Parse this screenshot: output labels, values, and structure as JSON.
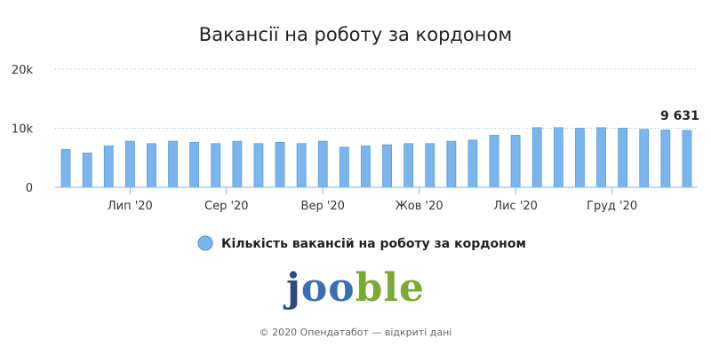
{
  "chart_data": {
    "type": "bar",
    "title": "Вакансії на роботу за кордоном",
    "ylim": [
      0,
      20000
    ],
    "yticks": [
      {
        "value": 0,
        "label": "0"
      },
      {
        "value": 10000,
        "label": "10k"
      },
      {
        "value": 20000,
        "label": "20k"
      }
    ],
    "grid": true,
    "xticks": [
      {
        "index": 3,
        "label": "Лип '20"
      },
      {
        "index": 7.5,
        "label": "Сер '20"
      },
      {
        "index": 12,
        "label": "Вер '20"
      },
      {
        "index": 16.5,
        "label": "Жов '20"
      },
      {
        "index": 21,
        "label": "Лис '20"
      },
      {
        "index": 25.5,
        "label": "Груд '20"
      }
    ],
    "series": [
      {
        "name": "Кількість вакансій на роботу за кордоном",
        "color": "#7cb5ec",
        "values": [
          6400,
          5800,
          7000,
          7800,
          7400,
          7800,
          7600,
          7400,
          7800,
          7400,
          7600,
          7400,
          7800,
          6800,
          7000,
          7200,
          7400,
          7400,
          7800,
          8000,
          8800,
          8800,
          10100,
          10100,
          10000,
          10100,
          10000,
          9800,
          9700,
          9631
        ]
      }
    ],
    "last_label": "9 631",
    "legend_position": "bottom"
  },
  "logo": {
    "part1": "j",
    "part2": "oo",
    "part3": "ble"
  },
  "credits": "© 2020 Опендатабот — відкриті дані"
}
